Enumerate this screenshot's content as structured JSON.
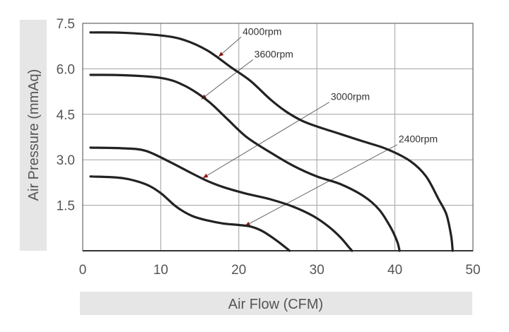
{
  "chart_data": {
    "type": "line",
    "title": "",
    "xlabel": "Air Flow (CFM)",
    "ylabel": "Air Pressure (mmAq)",
    "xlim": [
      0,
      50
    ],
    "ylim": [
      0,
      7.5
    ],
    "x_ticks": [
      "0",
      "10",
      "20",
      "30",
      "40",
      "50"
    ],
    "y_ticks": [
      "1.5",
      "3.0",
      "4.5",
      "6.0",
      "7.5"
    ],
    "grid": true,
    "legend": "none",
    "colors": {
      "curve": "#222222",
      "grid": "#a0a0a0",
      "axis_band": "#e6e6e6",
      "text": "#555555"
    },
    "series": [
      {
        "name": "4000rpm",
        "points": [
          [
            1,
            7.2
          ],
          [
            5,
            7.19
          ],
          [
            10,
            7.1
          ],
          [
            13,
            6.95
          ],
          [
            16,
            6.6
          ],
          [
            19,
            6.05
          ],
          [
            21.5,
            5.6
          ],
          [
            24,
            5.0
          ],
          [
            26,
            4.6
          ],
          [
            28,
            4.3
          ],
          [
            30,
            4.1
          ],
          [
            33,
            3.85
          ],
          [
            36,
            3.6
          ],
          [
            39,
            3.35
          ],
          [
            42,
            2.95
          ],
          [
            44,
            2.45
          ],
          [
            45.6,
            1.7
          ],
          [
            46.6,
            1.2
          ],
          [
            47.2,
            0.5
          ],
          [
            47.4,
            0
          ]
        ],
        "label": "4000rpm",
        "label_point": [
          17.2,
          6.4
        ]
      },
      {
        "name": "3600rpm",
        "points": [
          [
            1,
            5.8
          ],
          [
            5,
            5.79
          ],
          [
            10,
            5.7
          ],
          [
            13,
            5.45
          ],
          [
            16,
            4.95
          ],
          [
            18.5,
            4.35
          ],
          [
            21,
            3.75
          ],
          [
            24,
            3.25
          ],
          [
            27,
            2.8
          ],
          [
            30,
            2.45
          ],
          [
            33,
            2.2
          ],
          [
            36,
            1.8
          ],
          [
            38,
            1.35
          ],
          [
            39.5,
            0.75
          ],
          [
            40.3,
            0.3
          ],
          [
            40.6,
            0
          ]
        ],
        "label": "3600rpm",
        "label_point": [
          15.2,
          5.0
        ]
      },
      {
        "name": "3000rpm",
        "points": [
          [
            1,
            3.4
          ],
          [
            5,
            3.38
          ],
          [
            8,
            3.3
          ],
          [
            11,
            2.95
          ],
          [
            14,
            2.55
          ],
          [
            16,
            2.3
          ],
          [
            18,
            2.1
          ],
          [
            21,
            1.88
          ],
          [
            24,
            1.7
          ],
          [
            27,
            1.45
          ],
          [
            29.5,
            1.15
          ],
          [
            31.5,
            0.8
          ],
          [
            33,
            0.45
          ],
          [
            34,
            0.15
          ],
          [
            34.5,
            0
          ]
        ],
        "label": "3000rpm",
        "label_point": [
          15.5,
          2.4
        ]
      },
      {
        "name": "2400rpm",
        "points": [
          [
            1,
            2.45
          ],
          [
            5,
            2.4
          ],
          [
            8,
            2.2
          ],
          [
            10,
            1.9
          ],
          [
            12,
            1.45
          ],
          [
            14,
            1.15
          ],
          [
            16,
            1.0
          ],
          [
            18,
            0.9
          ],
          [
            20,
            0.85
          ],
          [
            21.5,
            0.8
          ],
          [
            23,
            0.65
          ],
          [
            24.5,
            0.4
          ],
          [
            25.8,
            0.15
          ],
          [
            26.5,
            0
          ]
        ],
        "label": "2400rpm",
        "label_point": [
          20.6,
          0.82
        ]
      }
    ],
    "annotations": [
      {
        "text": "4000rpm",
        "anchor": [
          17.4,
          6.4
        ],
        "text_at": [
          20.3,
          7.05
        ]
      },
      {
        "text": "3600rpm",
        "anchor": [
          15.2,
          5.0
        ],
        "text_at": [
          21.8,
          6.3
        ]
      },
      {
        "text": "3000rpm",
        "anchor": [
          15.4,
          2.4
        ],
        "text_at": [
          31.6,
          4.9
        ]
      },
      {
        "text": "2400rpm",
        "anchor": [
          20.8,
          0.82
        ],
        "text_at": [
          40.3,
          3.5
        ]
      }
    ]
  }
}
